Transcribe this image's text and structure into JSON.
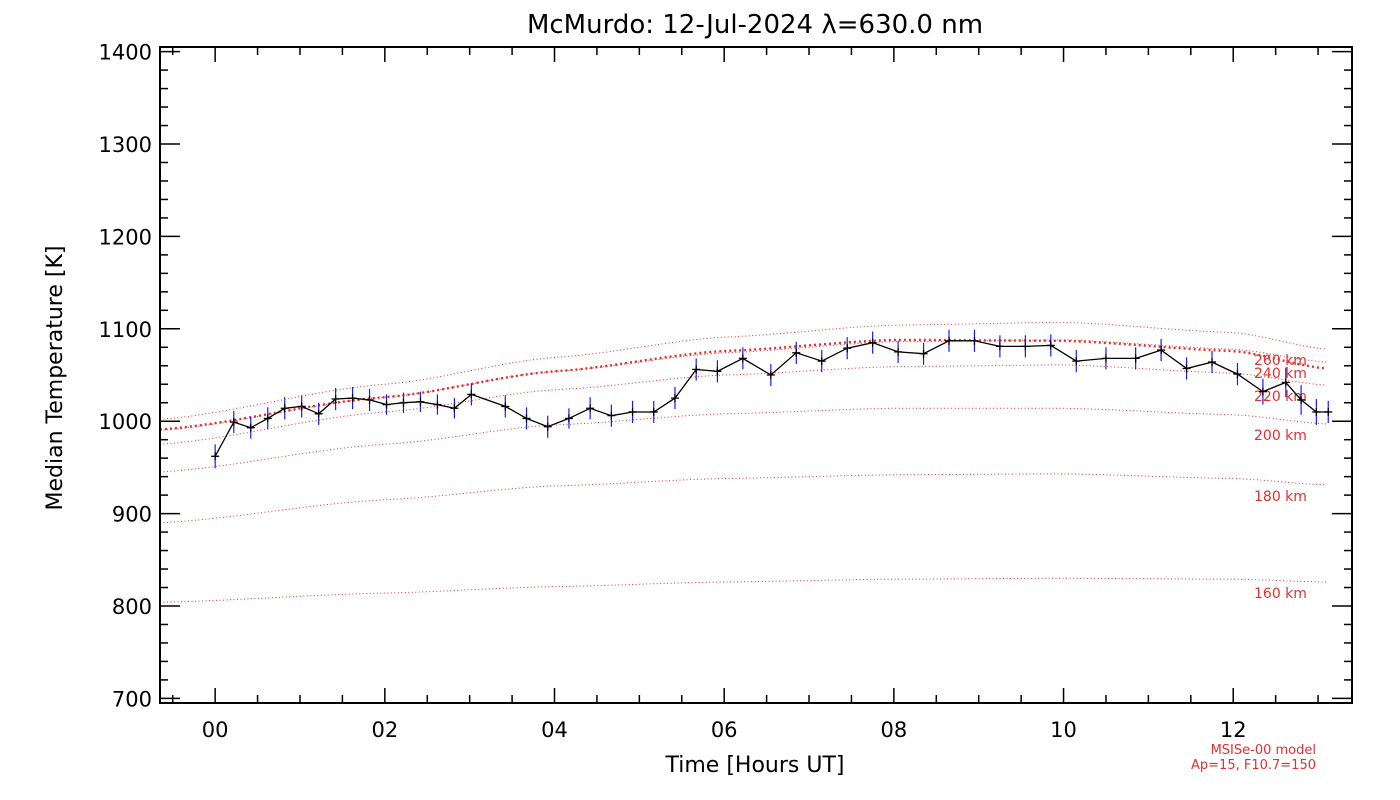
{
  "chart_data": {
    "type": "line",
    "title": "McMurdo: 12-Jul-2024 λ=630.0 nm",
    "xlabel": "Time [Hours UT]",
    "ylabel": "Median Temperature [K]",
    "xlim": [
      -0.65,
      13.4
    ],
    "ylim": [
      695,
      1405
    ],
    "x_ticks": [
      0,
      2,
      4,
      6,
      8,
      10,
      12
    ],
    "x_tick_labels": [
      "00",
      "02",
      "04",
      "06",
      "08",
      "10",
      "12"
    ],
    "y_ticks": [
      700,
      800,
      900,
      1000,
      1100,
      1200,
      1300,
      1400
    ],
    "y_tick_labels": [
      "700",
      "800",
      "900",
      "1000",
      "1100",
      "1200",
      "1300",
      "1400"
    ],
    "x_minor_step": 0.5,
    "y_minor_step": 20,
    "colors": {
      "data": "#000000",
      "error": "#1a1aff",
      "model": "#e03030",
      "axes": "#000000"
    },
    "series": [
      {
        "name": "",
        "style": "solid-with-markers",
        "x": [
          0.0,
          0.22,
          0.42,
          0.62,
          0.82,
          1.02,
          1.22,
          1.42,
          1.62,
          1.82,
          2.02,
          2.22,
          2.42,
          2.62,
          2.82,
          3.02,
          3.42,
          3.67,
          3.92,
          4.17,
          4.42,
          4.67,
          4.92,
          5.17,
          5.42,
          5.67,
          5.92,
          6.22,
          6.55,
          6.85,
          7.15,
          7.45,
          7.75,
          8.05,
          8.35,
          8.65,
          8.95,
          9.25,
          9.55,
          9.85,
          10.15,
          10.5,
          10.85,
          11.15,
          11.45,
          11.75,
          12.05,
          12.35,
          12.62,
          12.8,
          12.98,
          13.12
        ],
        "y": [
          962,
          999,
          993,
          1003,
          1014,
          1016,
          1008,
          1024,
          1025,
          1023,
          1018,
          1020,
          1021,
          1018,
          1014,
          1029,
          1016,
          1003,
          994,
          1003,
          1014,
          1006,
          1010,
          1010,
          1025,
          1056,
          1054,
          1068,
          1050,
          1074,
          1065,
          1079,
          1085,
          1075,
          1073,
          1087,
          1087,
          1081,
          1081,
          1082,
          1065,
          1068,
          1068,
          1077,
          1057,
          1064,
          1051,
          1032,
          1042,
          1023,
          1010,
          1010
        ],
        "y_err": [
          13,
          12,
          12,
          12,
          12,
          12,
          12,
          12,
          12,
          12,
          11,
          11,
          11,
          11,
          11,
          12,
          12,
          12,
          12,
          11,
          12,
          12,
          12,
          12,
          12,
          12,
          12,
          12,
          12,
          12,
          12,
          12,
          12,
          12,
          12,
          12,
          12,
          12,
          12,
          12,
          12,
          12,
          12,
          12,
          12,
          12,
          12,
          14,
          16,
          16,
          14,
          12
        ]
      }
    ],
    "model_curves": [
      {
        "label": "160 km",
        "x": [
          -0.65,
          2,
          4,
          6,
          8,
          10,
          12,
          13.1
        ],
        "y": [
          804,
          814,
          821,
          826,
          829,
          830,
          829,
          826
        ]
      },
      {
        "label": "180 km",
        "x": [
          -0.65,
          2,
          4,
          6,
          8,
          10,
          12,
          13.1
        ],
        "y": [
          890,
          915,
          930,
          938,
          942,
          943,
          938,
          931
        ]
      },
      {
        "label": "200 km",
        "x": [
          -0.65,
          2,
          4,
          6,
          8,
          10,
          12,
          13.1
        ],
        "y": [
          945,
          975,
          996,
          1008,
          1014,
          1014,
          1007,
          997
        ]
      },
      {
        "label": "220 km",
        "x": [
          -0.65,
          2,
          4,
          6,
          8,
          10,
          12,
          13.1
        ],
        "y": [
          975,
          1010,
          1034,
          1050,
          1059,
          1061,
          1052,
          1039
        ]
      },
      {
        "label": "240 km",
        "x": [
          -0.65,
          2,
          4,
          6,
          8,
          10,
          12,
          13.1
        ],
        "y": [
          990,
          1026,
          1054,
          1074,
          1086,
          1088,
          1078,
          1064
        ]
      },
      {
        "label": "260 km",
        "x": [
          -0.65,
          2,
          4,
          6,
          8,
          10,
          12,
          13.1
        ],
        "y": [
          1002,
          1040,
          1069,
          1091,
          1104,
          1107,
          1096,
          1078
        ]
      }
    ],
    "fit_curve": {
      "x": [
        -0.65,
        2,
        4,
        6,
        8,
        10,
        12,
        13.1
      ],
      "y": [
        991,
        1026,
        1054,
        1076,
        1088,
        1087,
        1076,
        1057
      ]
    },
    "model_note": [
      "MSISe-00 model",
      "Ap=15, F10.7=150"
    ]
  }
}
